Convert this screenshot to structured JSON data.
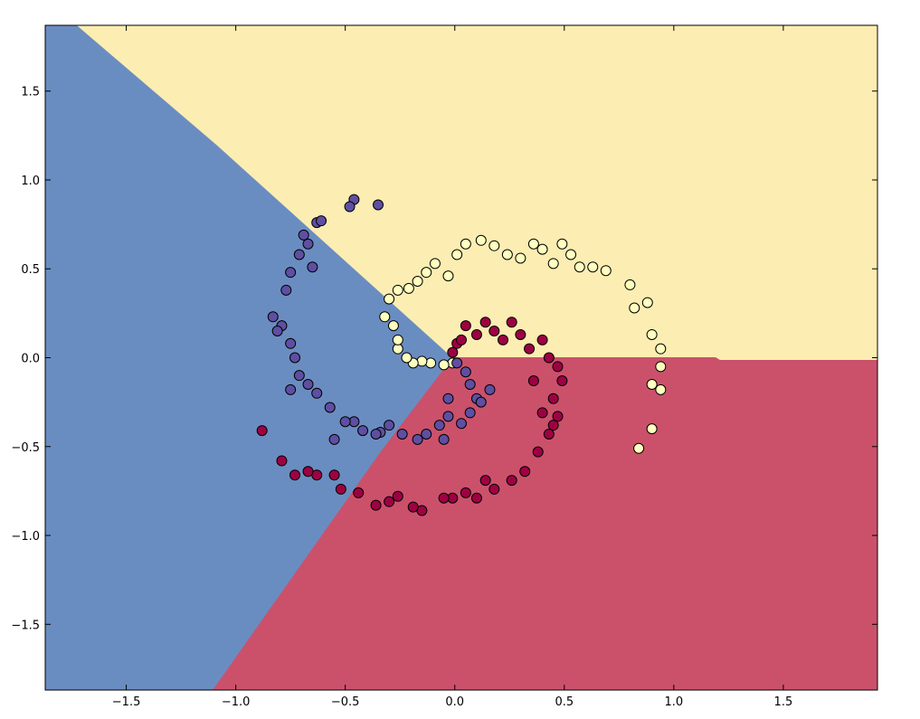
{
  "chart_data": {
    "type": "scatter",
    "xlim": [
      -1.87,
      1.93
    ],
    "ylim": [
      -1.87,
      1.87
    ],
    "xticks": [
      {
        "value": -1.5,
        "label": "−1.5"
      },
      {
        "value": -1.0,
        "label": "−1.0"
      },
      {
        "value": -0.5,
        "label": "−0.5"
      },
      {
        "value": 0,
        "label": "0.0"
      },
      {
        "value": 0.5,
        "label": "0.5"
      },
      {
        "value": 1.0,
        "label": "1.0"
      },
      {
        "value": 1.5,
        "label": "1.5"
      }
    ],
    "yticks": [
      {
        "value": -1.5,
        "label": "−1.5"
      },
      {
        "value": -1.0,
        "label": "−1.0"
      },
      {
        "value": -0.5,
        "label": "−0.5"
      },
      {
        "value": 0,
        "label": "0.0"
      },
      {
        "value": 0.5,
        "label": "0.5"
      },
      {
        "value": 1.0,
        "label": "1.0"
      },
      {
        "value": 1.5,
        "label": "1.5"
      }
    ],
    "regions": [
      {
        "color": "#6a8dc1",
        "x": [
          -1.87,
          -1.723,
          -1.083,
          -0.008,
          -0.339,
          -1.103,
          -1.87
        ],
        "y": [
          1.87,
          1.87,
          1.195,
          0.0,
          -0.534,
          -1.87,
          -1.87
        ]
      },
      {
        "color": "#fcedb2",
        "x": [
          -1.723,
          1.93,
          1.93,
          1.21,
          1.19,
          -0.008,
          -1.083
        ],
        "y": [
          1.87,
          1.87,
          -0.015,
          -0.015,
          0.0,
          0.0,
          1.195
        ]
      },
      {
        "color": "#cb516b",
        "x": [
          -0.008,
          1.19,
          1.21,
          1.93,
          1.93,
          -1.103,
          -0.339
        ],
        "y": [
          0.0,
          0.0,
          -0.015,
          -0.015,
          -1.87,
          -1.87,
          -0.534
        ]
      }
    ],
    "series": [
      {
        "color": "#ffffbf",
        "x": [
          -0.01,
          -0.05,
          -0.11,
          -0.15,
          -0.19,
          -0.22,
          -0.26,
          -0.26,
          -0.28,
          -0.32,
          -0.3,
          -0.26,
          -0.21,
          -0.17,
          -0.13,
          -0.09,
          -0.03,
          0.01,
          0.05,
          0.12,
          0.18,
          0.24,
          0.3,
          0.36,
          0.4,
          0.45,
          0.49,
          0.53,
          0.57,
          0.63,
          0.69,
          0.8,
          0.82,
          0.88,
          0.9,
          0.94,
          0.94,
          0.9,
          0.94,
          0.9,
          0.84
        ],
        "values": [
          -0.03,
          -0.04,
          -0.03,
          -0.02,
          -0.03,
          0.0,
          0.05,
          0.1,
          0.18,
          0.23,
          0.33,
          0.38,
          0.39,
          0.43,
          0.48,
          0.53,
          0.46,
          0.58,
          0.64,
          0.66,
          0.63,
          0.58,
          0.56,
          0.64,
          0.61,
          0.53,
          0.64,
          0.58,
          0.51,
          0.51,
          0.49,
          0.41,
          0.28,
          0.31,
          0.13,
          0.05,
          -0.05,
          -0.15,
          -0.18,
          -0.4,
          -0.51
        ]
      },
      {
        "color": "#5e4fa2",
        "x": [
          0.01,
          0.05,
          0.07,
          0.1,
          0.07,
          0.03,
          -0.03,
          -0.07,
          -0.13,
          -0.17,
          -0.24,
          -0.3,
          -0.34,
          -0.42,
          -0.46,
          -0.5,
          -0.57,
          -0.63,
          -0.67,
          -0.71,
          -0.73,
          -0.75,
          -0.79,
          -0.83,
          -0.77,
          -0.75,
          -0.71,
          -0.67,
          -0.63,
          -0.61,
          -0.46,
          -0.48,
          -0.35,
          -0.65,
          -0.69,
          -0.81,
          -0.75,
          -0.55,
          -0.36,
          -0.05,
          0.12,
          0.16,
          -0.03
        ],
        "values": [
          -0.03,
          -0.08,
          -0.15,
          -0.23,
          -0.31,
          -0.37,
          -0.33,
          -0.38,
          -0.43,
          -0.46,
          -0.43,
          -0.38,
          -0.42,
          -0.41,
          -0.36,
          -0.36,
          -0.28,
          -0.2,
          -0.15,
          -0.1,
          0.0,
          0.08,
          0.18,
          0.23,
          0.38,
          0.48,
          0.58,
          0.64,
          0.76,
          0.77,
          0.89,
          0.85,
          0.86,
          0.51,
          0.69,
          0.15,
          -0.18,
          -0.46,
          -0.43,
          -0.46,
          -0.25,
          -0.18,
          -0.23
        ]
      },
      {
        "color": "#9e0142",
        "x": [
          -0.01,
          0.01,
          0.03,
          0.05,
          0.1,
          0.14,
          0.18,
          0.22,
          0.26,
          0.3,
          0.34,
          0.4,
          0.43,
          0.47,
          0.49,
          0.45,
          0.47,
          0.43,
          0.38,
          0.32,
          0.26,
          0.18,
          0.1,
          0.05,
          -0.01,
          -0.05,
          -0.15,
          -0.19,
          -0.26,
          -0.3,
          -0.36,
          -0.44,
          -0.52,
          -0.55,
          -0.63,
          -0.67,
          -0.73,
          -0.79,
          -0.88,
          0.4,
          0.45,
          0.14,
          0.36
        ],
        "values": [
          0.03,
          0.08,
          0.1,
          0.18,
          0.13,
          0.2,
          0.15,
          0.1,
          0.2,
          0.13,
          0.05,
          0.1,
          0.0,
          -0.05,
          -0.13,
          -0.23,
          -0.33,
          -0.43,
          -0.53,
          -0.64,
          -0.69,
          -0.74,
          -0.79,
          -0.76,
          -0.79,
          -0.79,
          -0.86,
          -0.84,
          -0.78,
          -0.81,
          -0.83,
          -0.76,
          -0.74,
          -0.66,
          -0.66,
          -0.64,
          -0.66,
          -0.58,
          -0.41,
          -0.31,
          -0.38,
          -0.69,
          -0.13
        ]
      }
    ]
  }
}
